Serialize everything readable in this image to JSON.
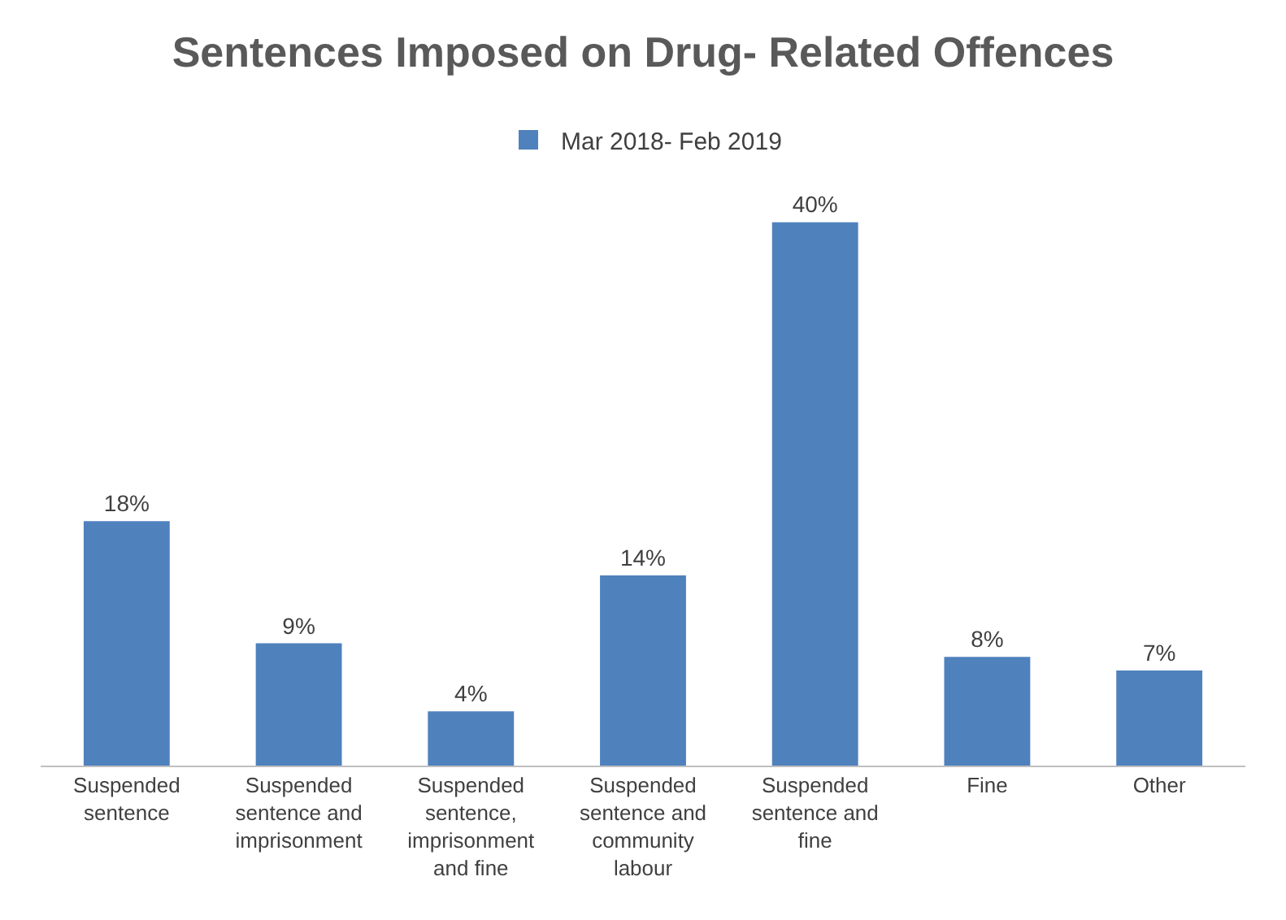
{
  "chart_data": {
    "type": "bar",
    "title": "Sentences Imposed on Drug- Related Offences",
    "categories": [
      "Suspended sentence",
      "Suspended sentence and imprisonment",
      "Suspended sentence, imprisonment and fine",
      "Suspended sentence and community labour",
      "Suspended sentence and fine",
      "Fine",
      "Other"
    ],
    "series": [
      {
        "name": "Mar 2018- Feb 2019",
        "color": "#4f81bd",
        "values": [
          18,
          9,
          4,
          14,
          40,
          8,
          7
        ],
        "value_labels": [
          "18%",
          "9%",
          "4%",
          "14%",
          "40%",
          "8%",
          "7%"
        ]
      }
    ],
    "legend": "top",
    "grid": false
  }
}
